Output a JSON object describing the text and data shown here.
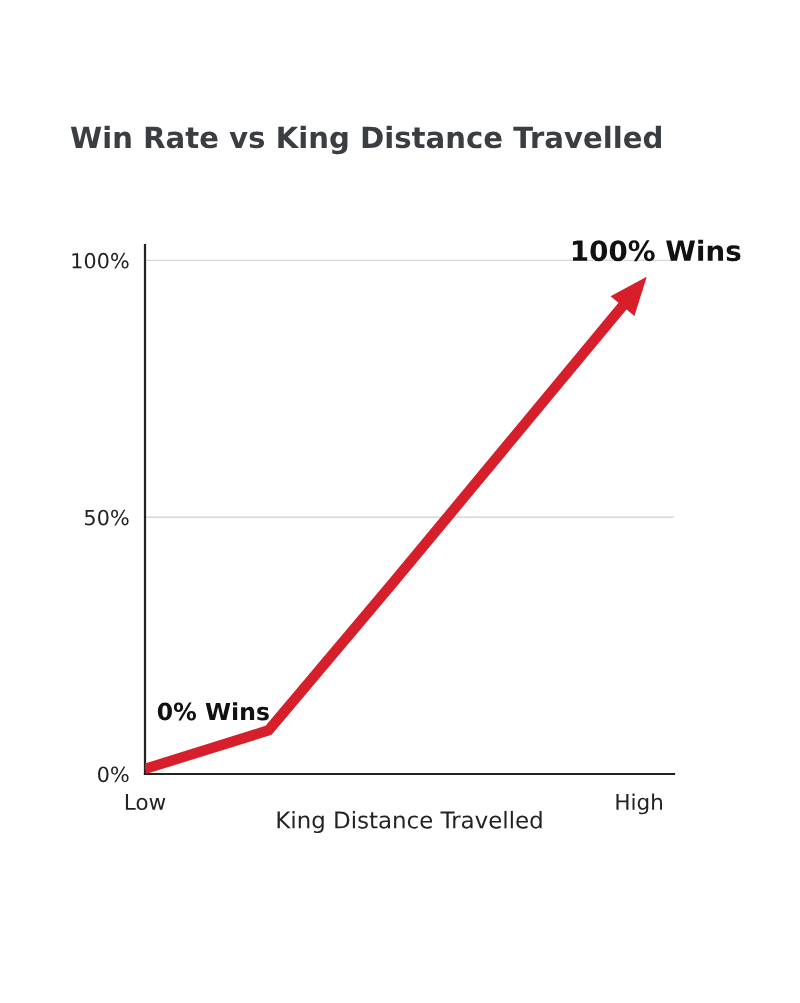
{
  "chart_data": {
    "type": "line",
    "title": "Win Rate vs King Distance Travelled",
    "xlabel": "King Distance Travelled",
    "categories": [
      "Low",
      null,
      null,
      null,
      "High"
    ],
    "series": [
      {
        "color": "#d71f2b",
        "values": [
          1,
          8.5,
          37,
          66,
          95
        ]
      }
    ],
    "ylim": [
      0,
      103
    ],
    "yticks": [
      {
        "value": 0,
        "label": "0%"
      },
      {
        "value": 50,
        "label": "50%"
      },
      {
        "value": 100,
        "label": "100%"
      }
    ],
    "grid": "y",
    "line_style": "solid",
    "annotations": [
      "0% Wins",
      {
        "text": "100% Wins",
        "x": "High",
        "y": 95
      }
    ]
  }
}
